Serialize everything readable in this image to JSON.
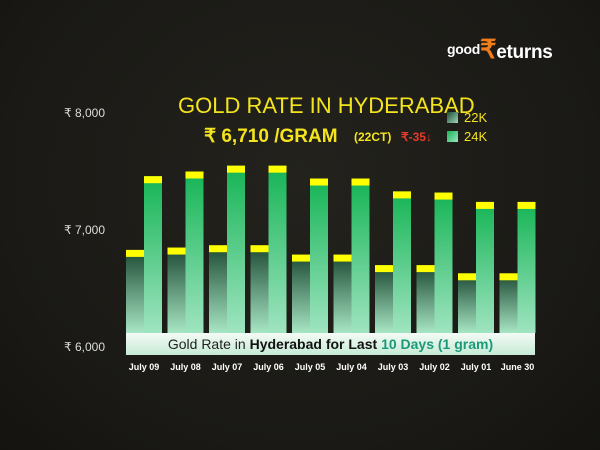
{
  "brand": {
    "good": "good",
    "rupee": "₹",
    "eturns": "eturns"
  },
  "header": {
    "title": "GOLD RATE IN HYDERABAD",
    "price": "₹ 6,710 /GRAM",
    "unit": "(22CT)",
    "change": "₹-35↓"
  },
  "banner": {
    "pre": "Gold Rate in ",
    "city": "Hyderabad for Last",
    "highlight": "10 Days (1 gram)"
  },
  "colors": {
    "bg": "#1b1a16",
    "accent": "#f4e41e",
    "k22": "#1f5a40",
    "k24": "#1dba62",
    "cap": "#ffff00",
    "down": "#e83a2a"
  },
  "chart_data": {
    "type": "bar",
    "categories": [
      "July 09",
      "July 08",
      "July 07",
      "July 06",
      "July 05",
      "July 04",
      "July 03",
      "July 02",
      "July 01",
      "June 30"
    ],
    "series": [
      {
        "name": "22K",
        "values": [
          6830,
          6850,
          6870,
          6870,
          6790,
          6790,
          6700,
          6700,
          6630,
          6630
        ]
      },
      {
        "name": "24K",
        "values": [
          7460,
          7500,
          7550,
          7550,
          7440,
          7440,
          7330,
          7320,
          7240,
          7240
        ]
      }
    ],
    "yticks": [
      "₹ 8,000",
      "₹ 7,000",
      "₹ 6,000"
    ],
    "ylim": [
      6000,
      8000
    ],
    "legend": "top-right",
    "grid": false
  }
}
